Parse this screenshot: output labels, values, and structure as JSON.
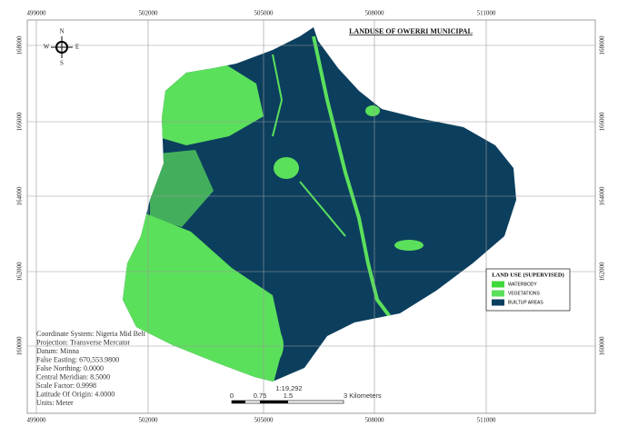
{
  "title": "LANDUSE OF OWERRI MUNICIPAL",
  "grid": {
    "x_labels": [
      "499000",
      "502000",
      "505000",
      "508000",
      "511000"
    ],
    "y_labels": [
      "168000",
      "166000",
      "164000",
      "162000",
      "160000"
    ]
  },
  "north_arrow": {
    "n": "N",
    "s": "S",
    "e": "E",
    "w": "W"
  },
  "legend": {
    "title": "LAND USE (SUPERVISED)",
    "items": [
      {
        "label": "WATERBODY",
        "color": "#3fd93a"
      },
      {
        "label": "VEGETATIONS",
        "color": "#5be05b"
      },
      {
        "label": "BUILTUP AREAS",
        "color": "#0c3f5e"
      }
    ]
  },
  "info": [
    "Coordinate System: Nigeria Mid Belt",
    "Projection: Transverse Mercator",
    "Datum: Minna",
    "False Easting: 670,553.9800",
    "False Northing: 0.0000",
    "Central Meridian: 8.5000",
    "Scale Factor: 0.9998",
    "Latitude Of Origin: 4.0000",
    "Units: Meter"
  ],
  "scale": {
    "ratio": "1:19,292",
    "labels": [
      "0",
      "0.75",
      "1.5",
      "3 Kilometers"
    ]
  }
}
